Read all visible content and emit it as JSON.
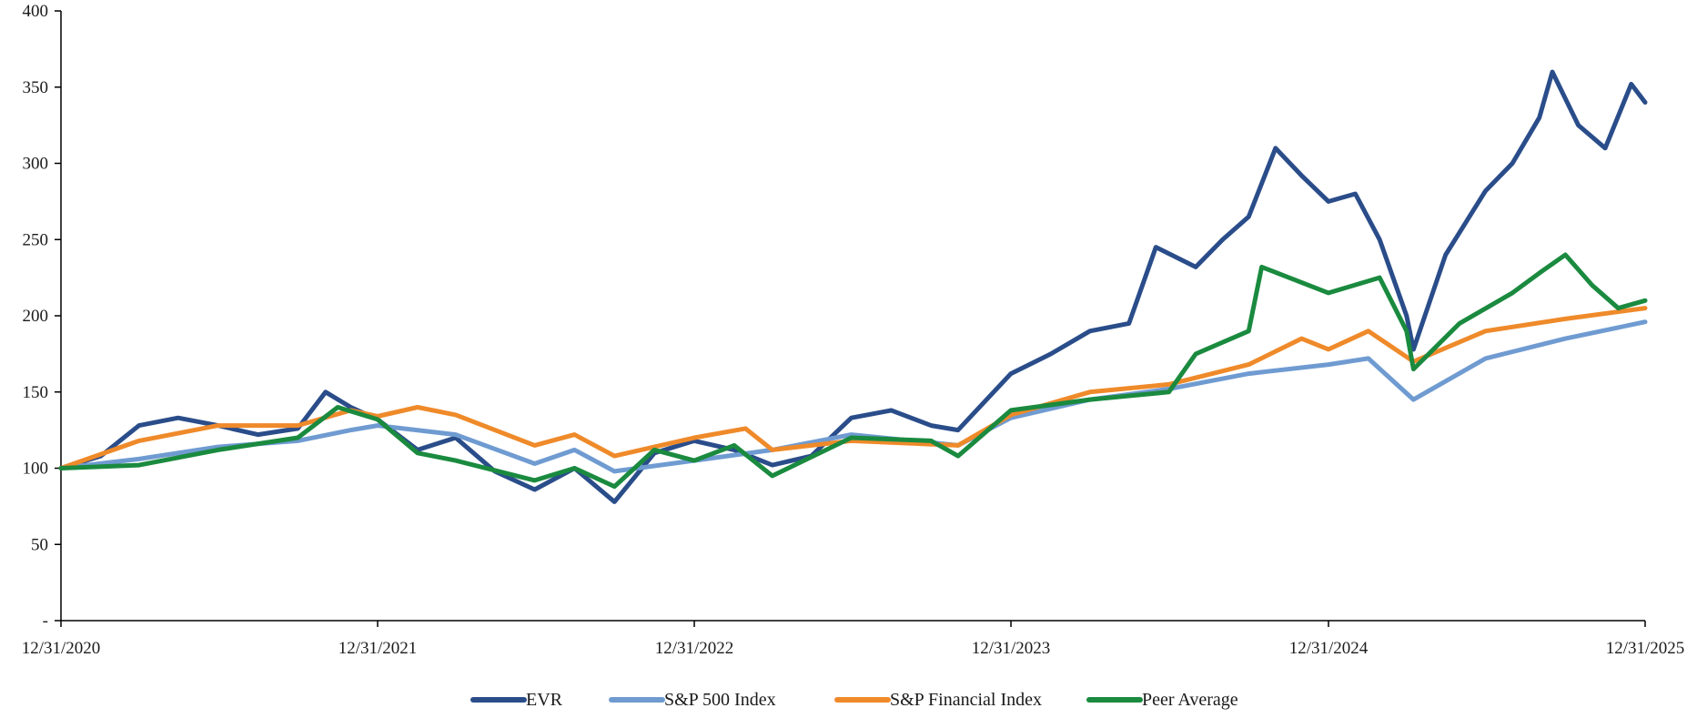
{
  "chart_data": {
    "type": "line",
    "title": "",
    "xlabel": "",
    "ylabel": "",
    "x_ticks": [
      "12/31/2020",
      "12/31/2021",
      "12/31/2022",
      "12/31/2023",
      "12/31/2024",
      "12/31/2025"
    ],
    "y_ticks": [
      "-",
      "50",
      "100",
      "150",
      "200",
      "250",
      "300",
      "350",
      "400"
    ],
    "ylim": [
      0,
      400
    ],
    "xlim": [
      "12/31/2020",
      "12/31/2025"
    ],
    "grid": false,
    "legend_position": "bottom",
    "series": [
      {
        "name": "EVR",
        "color": "#2a4d8a",
        "points": [
          [
            "12/31/2020",
            100
          ],
          [
            "02/15/2021",
            108
          ],
          [
            "03/31/2021",
            128
          ],
          [
            "05/15/2021",
            133
          ],
          [
            "06/30/2021",
            128
          ],
          [
            "08/15/2021",
            122
          ],
          [
            "09/30/2021",
            126
          ],
          [
            "11/01/2021",
            150
          ],
          [
            "11/30/2021",
            140
          ],
          [
            "12/31/2021",
            132
          ],
          [
            "02/15/2022",
            112
          ],
          [
            "03/31/2022",
            120
          ],
          [
            "05/15/2022",
            98
          ],
          [
            "06/30/2022",
            86
          ],
          [
            "08/15/2022",
            100
          ],
          [
            "09/30/2022",
            78
          ],
          [
            "11/15/2022",
            110
          ],
          [
            "12/31/2022",
            118
          ],
          [
            "02/15/2023",
            112
          ],
          [
            "03/31/2023",
            102
          ],
          [
            "05/15/2023",
            108
          ],
          [
            "06/30/2023",
            133
          ],
          [
            "08/15/2023",
            138
          ],
          [
            "09/30/2023",
            128
          ],
          [
            "10/31/2023",
            125
          ],
          [
            "12/31/2023",
            162
          ],
          [
            "02/15/2024",
            175
          ],
          [
            "03/31/2024",
            190
          ],
          [
            "05/15/2024",
            195
          ],
          [
            "06/15/2024",
            245
          ],
          [
            "07/31/2024",
            232
          ],
          [
            "08/31/2024",
            250
          ],
          [
            "09/30/2024",
            265
          ],
          [
            "10/31/2024",
            310
          ],
          [
            "11/30/2024",
            292
          ],
          [
            "12/31/2024",
            275
          ],
          [
            "01/31/2025",
            280
          ],
          [
            "02/28/2025",
            250
          ],
          [
            "03/31/2025",
            200
          ],
          [
            "04/08/2025",
            178
          ],
          [
            "05/15/2025",
            240
          ],
          [
            "06/30/2025",
            282
          ],
          [
            "07/31/2025",
            300
          ],
          [
            "08/31/2025",
            330
          ],
          [
            "09/15/2025",
            360
          ],
          [
            "10/15/2025",
            325
          ],
          [
            "11/15/2025",
            310
          ],
          [
            "12/15/2025",
            352
          ],
          [
            "12/31/2025",
            340
          ]
        ]
      },
      {
        "name": "S&P 500 Index",
        "color": "#6f9bd1",
        "points": [
          [
            "12/31/2020",
            100
          ],
          [
            "03/31/2021",
            106
          ],
          [
            "06/30/2021",
            114
          ],
          [
            "09/30/2021",
            118
          ],
          [
            "11/30/2021",
            125
          ],
          [
            "12/31/2021",
            128
          ],
          [
            "03/31/2022",
            122
          ],
          [
            "06/30/2022",
            103
          ],
          [
            "08/15/2022",
            112
          ],
          [
            "09/30/2022",
            98
          ],
          [
            "12/31/2022",
            105
          ],
          [
            "03/31/2023",
            112
          ],
          [
            "06/30/2023",
            122
          ],
          [
            "10/31/2023",
            115
          ],
          [
            "12/31/2023",
            133
          ],
          [
            "03/31/2024",
            145
          ],
          [
            "06/30/2024",
            152
          ],
          [
            "09/30/2024",
            162
          ],
          [
            "12/31/2024",
            168
          ],
          [
            "02/15/2025",
            172
          ],
          [
            "04/08/2025",
            145
          ],
          [
            "06/30/2025",
            172
          ],
          [
            "09/30/2025",
            185
          ],
          [
            "12/31/2025",
            196
          ]
        ]
      },
      {
        "name": "S&P Financial Index",
        "color": "#ef8a2a",
        "points": [
          [
            "12/31/2020",
            100
          ],
          [
            "03/31/2021",
            118
          ],
          [
            "06/30/2021",
            128
          ],
          [
            "09/30/2021",
            128
          ],
          [
            "11/30/2021",
            138
          ],
          [
            "12/31/2021",
            134
          ],
          [
            "02/15/2022",
            140
          ],
          [
            "03/31/2022",
            135
          ],
          [
            "06/30/2022",
            115
          ],
          [
            "08/15/2022",
            122
          ],
          [
            "09/30/2022",
            108
          ],
          [
            "12/31/2022",
            120
          ],
          [
            "02/28/2023",
            126
          ],
          [
            "03/31/2023",
            112
          ],
          [
            "06/30/2023",
            118
          ],
          [
            "10/31/2023",
            115
          ],
          [
            "12/31/2023",
            135
          ],
          [
            "03/31/2024",
            150
          ],
          [
            "06/30/2024",
            155
          ],
          [
            "09/30/2024",
            168
          ],
          [
            "11/30/2024",
            185
          ],
          [
            "12/31/2024",
            178
          ],
          [
            "02/15/2025",
            190
          ],
          [
            "04/08/2025",
            170
          ],
          [
            "06/30/2025",
            190
          ],
          [
            "09/30/2025",
            198
          ],
          [
            "12/31/2025",
            205
          ]
        ]
      },
      {
        "name": "Peer Average",
        "color": "#1a8a3f",
        "points": [
          [
            "12/31/2020",
            100
          ],
          [
            "03/31/2021",
            102
          ],
          [
            "06/30/2021",
            112
          ],
          [
            "09/30/2021",
            120
          ],
          [
            "11/15/2021",
            140
          ],
          [
            "12/31/2021",
            132
          ],
          [
            "02/15/2022",
            110
          ],
          [
            "03/31/2022",
            105
          ],
          [
            "06/30/2022",
            92
          ],
          [
            "08/15/2022",
            100
          ],
          [
            "09/30/2022",
            88
          ],
          [
            "11/15/2022",
            112
          ],
          [
            "12/31/2022",
            105
          ],
          [
            "02/15/2023",
            115
          ],
          [
            "03/31/2023",
            95
          ],
          [
            "06/30/2023",
            120
          ],
          [
            "09/30/2023",
            118
          ],
          [
            "10/31/2023",
            108
          ],
          [
            "12/31/2023",
            138
          ],
          [
            "03/31/2024",
            145
          ],
          [
            "06/30/2024",
            150
          ],
          [
            "07/31/2024",
            175
          ],
          [
            "09/30/2024",
            190
          ],
          [
            "10/15/2024",
            232
          ],
          [
            "12/31/2024",
            215
          ],
          [
            "02/28/2025",
            225
          ],
          [
            "03/31/2025",
            190
          ],
          [
            "04/08/2025",
            165
          ],
          [
            "05/31/2025",
            195
          ],
          [
            "07/31/2025",
            215
          ],
          [
            "08/31/2025",
            228
          ],
          [
            "09/30/2025",
            240
          ],
          [
            "10/31/2025",
            220
          ],
          [
            "11/30/2025",
            205
          ],
          [
            "12/31/2025",
            210
          ]
        ]
      }
    ]
  }
}
